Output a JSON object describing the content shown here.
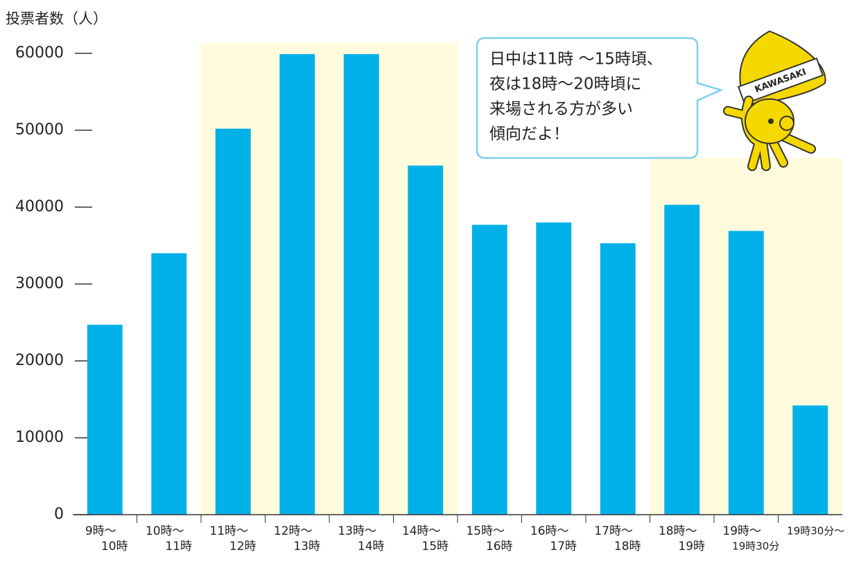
{
  "chart_data": {
    "type": "bar",
    "y_label": "投票者数（人）",
    "categories": [
      [
        "9時～",
        "10時"
      ],
      [
        "10時～",
        "11時"
      ],
      [
        "11時～",
        "12時"
      ],
      [
        "12時～",
        "13時"
      ],
      [
        "13時～",
        "14時"
      ],
      [
        "14時～",
        "15時"
      ],
      [
        "15時～",
        "16時"
      ],
      [
        "16時～",
        "17時"
      ],
      [
        "17時～",
        "18時"
      ],
      [
        "18時～",
        "19時"
      ],
      [
        "19時～",
        "19時30分"
      ],
      [
        "19時30分～"
      ]
    ],
    "values": [
      24700,
      34000,
      50200,
      59900,
      59900,
      45400,
      37700,
      38000,
      35300,
      40300,
      36900,
      14200
    ],
    "color": "#00b0e8",
    "ylim": [
      0,
      60000
    ],
    "yticks": [
      0,
      10000,
      20000,
      30000,
      40000,
      50000,
      60000
    ],
    "annotation": [
      "日中は11時 ～15時頃、",
      "夜は18時～20時頃に",
      "来場される方が多い",
      "傾向だよ！"
    ],
    "mascot_label": "KAWASAKI"
  }
}
